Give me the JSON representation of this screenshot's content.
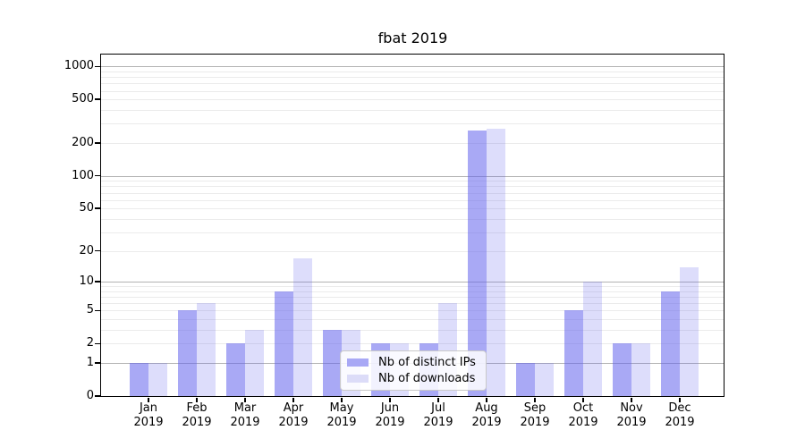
{
  "chart_data": {
    "type": "bar",
    "title": "fbat 2019",
    "categories": [
      "Jan 2019",
      "Feb 2019",
      "Mar 2019",
      "Apr 2019",
      "May 2019",
      "Jun 2019",
      "Jul 2019",
      "Aug 2019",
      "Sep 2019",
      "Oct 2019",
      "Nov 2019",
      "Dec 2019"
    ],
    "series": [
      {
        "name": "Nb of distinct IPs",
        "values": [
          1,
          5,
          2,
          8,
          3,
          2,
          2,
          260,
          1,
          5,
          2,
          8
        ],
        "color_on_white": "#a8a8f5"
      },
      {
        "name": "Nb of downloads",
        "values": [
          1,
          6,
          3,
          17,
          3,
          2,
          6,
          270,
          1,
          10,
          2,
          14
        ],
        "color_on_white": "#dcdcf8"
      }
    ],
    "yscale": "log1p",
    "y_ticks": [
      0,
      1,
      2,
      5,
      10,
      20,
      50,
      100,
      200,
      500,
      1000
    ],
    "ylim": [
      0,
      1280
    ],
    "grid": "horizontal",
    "legend_position": "lower center"
  },
  "colors": {
    "bar_base": "#6363ed",
    "dark_alpha": 0.55,
    "light_alpha": 0.22,
    "major_grid": "#b3b3b3",
    "minor_grid": "#ebebeb",
    "axis": "#000000",
    "background": "#ffffff"
  }
}
